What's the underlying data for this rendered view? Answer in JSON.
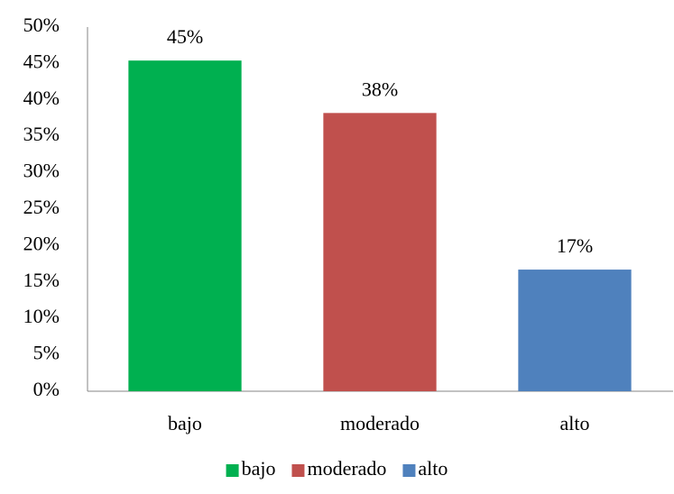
{
  "chart_data": {
    "type": "bar",
    "categories": [
      "bajo",
      "moderado",
      "alto"
    ],
    "values": [
      45.4,
      38.2,
      16.7
    ],
    "value_labels": [
      "45%",
      "38%",
      "17%"
    ],
    "colors": [
      "#00b050",
      "#c0504d",
      "#4f81bd"
    ],
    "ylim": [
      0,
      50
    ],
    "yticks": [
      {
        "value": 0,
        "label": "0%"
      },
      {
        "value": 5,
        "label": "5%"
      },
      {
        "value": 10,
        "label": "10%"
      },
      {
        "value": 15,
        "label": "15%"
      },
      {
        "value": 20,
        "label": "20%"
      },
      {
        "value": 25,
        "label": "25%"
      },
      {
        "value": 30,
        "label": "30%"
      },
      {
        "value": 35,
        "label": "35%"
      },
      {
        "value": 40,
        "label": "40%"
      },
      {
        "value": 45,
        "label": "45%"
      },
      {
        "value": 50,
        "label": "50%"
      }
    ],
    "grid": false,
    "legend": "bottom"
  }
}
